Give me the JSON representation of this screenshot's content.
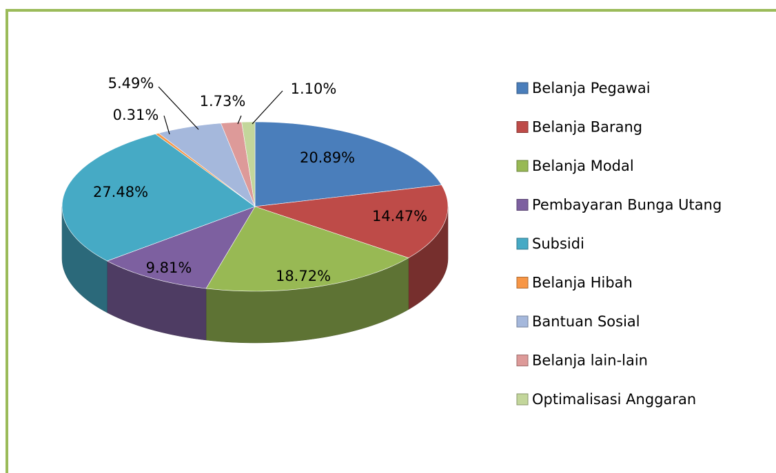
{
  "chart_data": {
    "type": "pie",
    "categories": [
      "Belanja Pegawai",
      "Belanja Barang",
      "Belanja Modal",
      "Pembayaran Bunga Utang",
      "Subsidi",
      "Belanja Hibah",
      "Bantuan Sosial",
      "Belanja lain-lain",
      "Optimalisasi Anggaran"
    ],
    "values": [
      20.89,
      14.47,
      18.72,
      9.81,
      27.48,
      0.31,
      5.49,
      1.73,
      1.1
    ],
    "value_labels": [
      "20.89%",
      "14.47%",
      "18.72%",
      "9.81%",
      "27.48%",
      "0.31%",
      "5.49%",
      "1.73%",
      "1.10%"
    ],
    "colors": [
      "#4a7ebb",
      "#be4b48",
      "#98b954",
      "#7d60a0",
      "#46aac5",
      "#f79646",
      "#a5b8dc",
      "#dd9a99",
      "#c3d69b"
    ],
    "legend": "right"
  }
}
